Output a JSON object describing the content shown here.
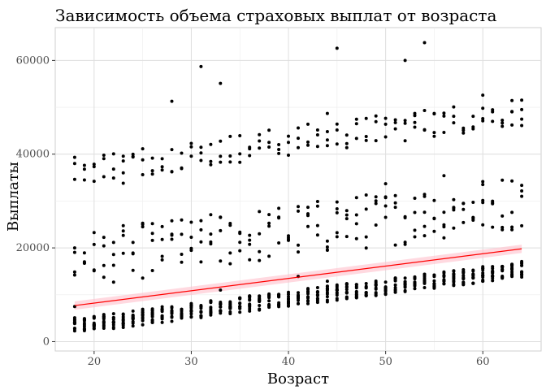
{
  "chart_data": {
    "type": "scatter",
    "title": "Зависимость объема страховых выплат от возраста",
    "xlabel": "Возраст",
    "ylabel": "Выплаты",
    "xlim": [
      16,
      66
    ],
    "ylim": [
      -2000,
      67000
    ],
    "x_ticks": [
      20,
      30,
      40,
      50,
      60
    ],
    "y_ticks": [
      0,
      20000,
      40000,
      60000
    ],
    "x_tick_labels": [
      "20",
      "30",
      "40",
      "50",
      "60"
    ],
    "y_tick_labels": [
      "0",
      "20000",
      "40000",
      "60000"
    ],
    "grid": true,
    "legend": "none",
    "point_color": "#000000",
    "trend_color": "#ff0000",
    "band_color": "#ffc0cb",
    "trend": {
      "x": [
        18,
        64
      ],
      "y": [
        7700,
        19800
      ],
      "band_halfwidth": [
        900,
        900
      ]
    },
    "groups": [
      {
        "name": "low",
        "x_range": [
          18,
          64
        ],
        "base_y": [
          1700,
          13700
        ],
        "spread": 3400,
        "points_per_age": 12
      },
      {
        "name": "middle",
        "x_range": [
          18,
          64
        ],
        "base_y": [
          11500,
          24000
        ],
        "spread": 12000,
        "points_per_age": 4
      },
      {
        "name": "high",
        "x_range": [
          18,
          64
        ],
        "base_y": [
          33500,
          46000
        ],
        "spread": 6500,
        "points_per_age": 3
      }
    ],
    "outliers": [
      {
        "x": 28,
        "y": 51300
      },
      {
        "x": 31,
        "y": 58700
      },
      {
        "x": 33,
        "y": 55100
      },
      {
        "x": 45,
        "y": 62600
      },
      {
        "x": 52,
        "y": 60000
      },
      {
        "x": 54,
        "y": 63800
      },
      {
        "x": 60,
        "y": 52600
      },
      {
        "x": 44,
        "y": 48700
      },
      {
        "x": 53,
        "y": 48700
      },
      {
        "x": 55,
        "y": 48700
      },
      {
        "x": 64,
        "y": 49500
      },
      {
        "x": 63,
        "y": 49100
      },
      {
        "x": 33,
        "y": 11000
      },
      {
        "x": 41,
        "y": 13900
      },
      {
        "x": 18,
        "y": 7500
      },
      {
        "x": 44,
        "y": 12900
      },
      {
        "x": 23,
        "y": 33800
      },
      {
        "x": 45,
        "y": 29800
      },
      {
        "x": 50,
        "y": 33700
      },
      {
        "x": 54,
        "y": 31000
      },
      {
        "x": 56,
        "y": 35400
      },
      {
        "x": 57,
        "y": 28500
      },
      {
        "x": 59,
        "y": 26500
      },
      {
        "x": 60,
        "y": 29700
      }
    ]
  }
}
